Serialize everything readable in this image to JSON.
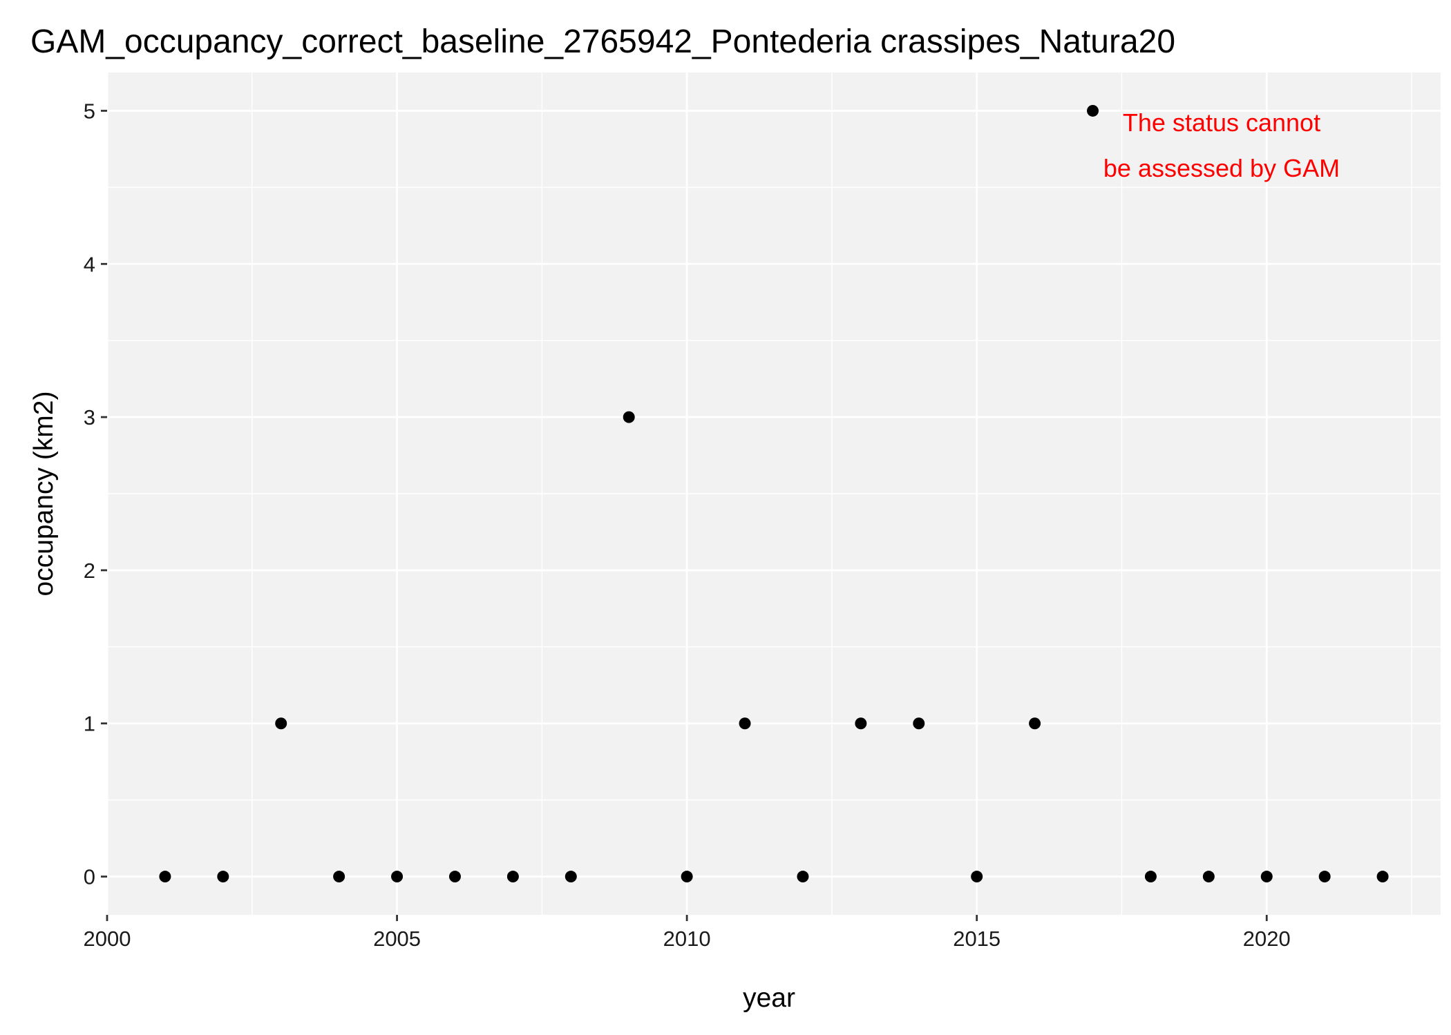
{
  "chart_data": {
    "type": "scatter",
    "title": "GAM_occupancy_correct_baseline_2765942_Pontederia crassipes_Natura20",
    "xlabel": "year",
    "ylabel": "occupancy (km2)",
    "xlim": [
      2000,
      2023
    ],
    "ylim": [
      -0.25,
      5.25
    ],
    "x_ticks": [
      2000,
      2005,
      2010,
      2015,
      2020
    ],
    "x_tick_labels": [
      "2000",
      "2005",
      "2010",
      "2015",
      "2020"
    ],
    "y_ticks": [
      0,
      1,
      2,
      3,
      4,
      5
    ],
    "y_tick_labels": [
      "0",
      "1",
      "2",
      "3",
      "4",
      "5"
    ],
    "grid": true,
    "panel_background": "#f2f2f2",
    "grid_color": "#ffffff",
    "point_color": "#000000",
    "series": [
      {
        "x": [
          2001,
          2002,
          2003,
          2004,
          2005,
          2006,
          2007,
          2008,
          2009,
          2010,
          2011,
          2012,
          2013,
          2014,
          2015,
          2016,
          2017,
          2018,
          2019,
          2020,
          2021,
          2022
        ],
        "y": [
          0,
          0,
          1,
          0,
          0,
          0,
          0,
          0,
          3,
          0,
          1,
          0,
          1,
          1,
          0,
          1,
          5,
          0,
          0,
          0,
          0,
          0
        ]
      }
    ],
    "annotation": {
      "lines": [
        "The status cannot",
        "be assessed by GAM"
      ],
      "color": "#ff0000",
      "position": "top-right"
    }
  }
}
